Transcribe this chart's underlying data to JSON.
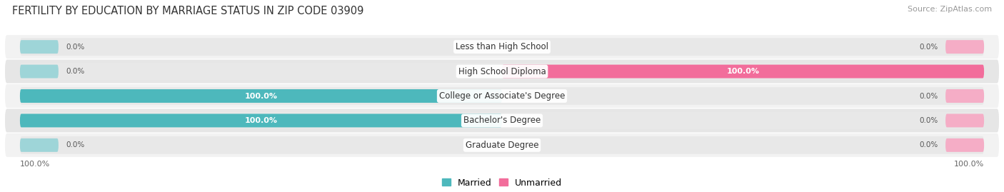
{
  "title": "FERTILITY BY EDUCATION BY MARRIAGE STATUS IN ZIP CODE 03909",
  "source": "Source: ZipAtlas.com",
  "categories": [
    "Less than High School",
    "High School Diploma",
    "College or Associate's Degree",
    "Bachelor's Degree",
    "Graduate Degree"
  ],
  "married": [
    0.0,
    0.0,
    100.0,
    100.0,
    0.0
  ],
  "unmarried": [
    0.0,
    100.0,
    0.0,
    0.0,
    0.0
  ],
  "married_color": "#4db8bc",
  "married_stub_color": "#9ed5d8",
  "unmarried_color": "#f26d9b",
  "unmarried_stub_color": "#f5adc6",
  "track_color": "#e8e8e8",
  "row_bg_even": "#f2f2f2",
  "row_bg_odd": "#e6e6e6",
  "married_label": "Married",
  "unmarried_label": "Unmarried",
  "figsize": [
    14.06,
    2.69
  ],
  "dpi": 100,
  "stub_pct": 8.0
}
